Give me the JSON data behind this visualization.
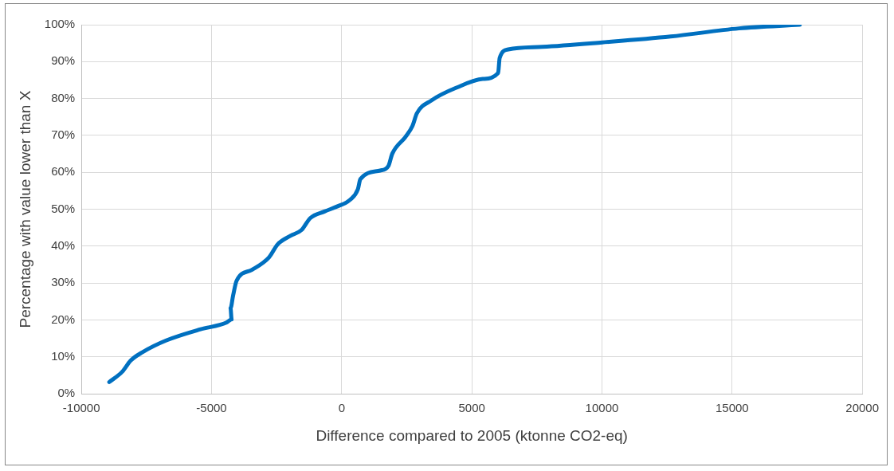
{
  "chart_data": {
    "type": "line",
    "xlabel": "Difference compared to 2005 (ktonne CO2-eq)",
    "ylabel": "Percentage with value lower than X",
    "xlim": [
      -10000,
      20000
    ],
    "xticks": [
      -10000,
      -5000,
      0,
      5000,
      10000,
      15000,
      20000
    ],
    "ylim": [
      0,
      100
    ],
    "yticks": [
      {
        "value": 0,
        "label": "0%"
      },
      {
        "value": 10,
        "label": "10%"
      },
      {
        "value": 20,
        "label": "20%"
      },
      {
        "value": 30,
        "label": "30%"
      },
      {
        "value": 40,
        "label": "40%"
      },
      {
        "value": 50,
        "label": "50%"
      },
      {
        "value": 60,
        "label": "60%"
      },
      {
        "value": 70,
        "label": "70%"
      },
      {
        "value": 80,
        "label": "80%"
      },
      {
        "value": 90,
        "label": "90%"
      },
      {
        "value": 100,
        "label": "100%"
      }
    ],
    "grid": true,
    "marker": "none",
    "line_style": "solid",
    "series": [
      {
        "color": "#0070c0",
        "x": [
          -8930,
          -8430,
          -8110,
          -7650,
          -6730,
          -5420,
          -4430,
          -4230,
          -4270,
          -4170,
          -4040,
          -3450,
          -2790,
          -2460,
          -1970,
          -1540,
          -1210,
          -660,
          -160,
          330,
          620,
          720,
          1480,
          1800,
          1940,
          2460,
          2720,
          2890,
          3450,
          4430,
          5420,
          6010,
          6070,
          6400,
          7710,
          10010,
          12640,
          15260,
          17600
        ],
        "values": [
          3.2,
          6,
          9,
          11.3,
          14.5,
          17.5,
          19.3,
          20.2,
          23.2,
          26.7,
          30.6,
          33.6,
          37,
          40.5,
          42.8,
          44.4,
          47.6,
          49.4,
          50.8,
          52.6,
          55.4,
          58.2,
          60.5,
          61.8,
          65,
          69.7,
          72.6,
          76,
          79.5,
          83,
          85.3,
          86.9,
          91,
          93.3,
          94,
          95.2,
          96.8,
          99,
          100
        ]
      }
    ]
  }
}
